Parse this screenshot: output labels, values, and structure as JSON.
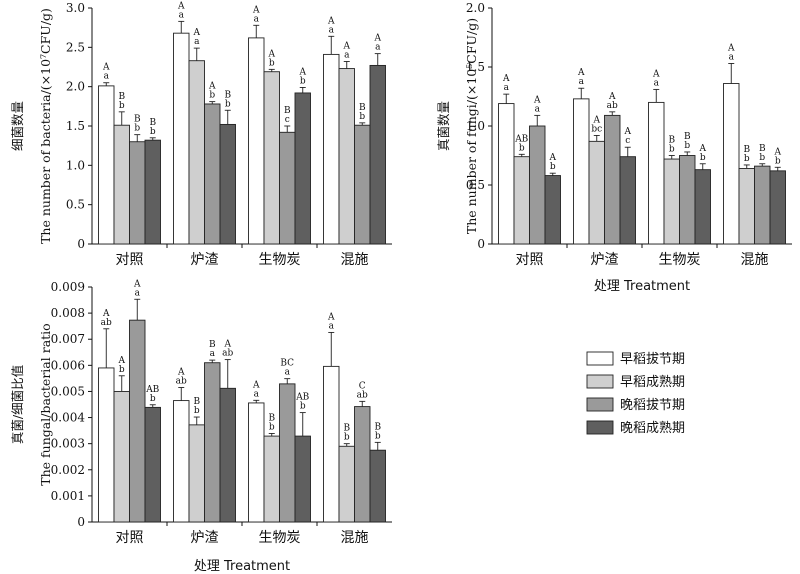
{
  "chart_data": [
    {
      "id": "bacteria",
      "type": "bar",
      "ylabel_cn": "细菌数量",
      "ylabel_en": "The number of bacteria/(×10⁷CFU/g)",
      "xlabel": "",
      "ylim": [
        0,
        3.0
      ],
      "yticks": [
        "0",
        "0.5",
        "1.0",
        "1.5",
        "2.0",
        "2.5",
        "3.0"
      ],
      "categories": [
        "对照",
        "炉渣",
        "生物炭",
        "混施"
      ],
      "series": [
        {
          "name": "早稻拔节期",
          "values": [
            2.01,
            2.68,
            2.62,
            2.41
          ],
          "errors": [
            0.04,
            0.15,
            0.16,
            0.23
          ]
        },
        {
          "name": "早稻成熟期",
          "values": [
            1.51,
            2.33,
            2.19,
            2.23
          ],
          "errors": [
            0.17,
            0.16,
            0.03,
            0.09
          ]
        },
        {
          "name": "晚稻拔节期",
          "values": [
            1.3,
            1.78,
            1.42,
            1.51
          ],
          "errors": [
            0.09,
            0.03,
            0.08,
            0.03
          ]
        },
        {
          "name": "晚稻成熟期",
          "values": [
            1.32,
            1.52,
            1.92,
            2.27
          ],
          "errors": [
            0.03,
            0.18,
            0.07,
            0.15
          ]
        }
      ],
      "labels": [
        [
          "A\na",
          "A\na",
          "A\na",
          "A\na"
        ],
        [
          "B\nb",
          "A\na",
          "A\nb",
          "A\na"
        ],
        [
          "B\nb",
          "A\nb",
          "B\nc",
          "B\nb"
        ],
        [
          "B\nb",
          "B\nb",
          "A\nb",
          "A\na"
        ]
      ]
    },
    {
      "id": "fungi",
      "type": "bar",
      "ylabel_cn": "真菌数量",
      "ylabel_en": "The number of fungi/(×10⁵CFU/g)",
      "xlabel": "处理 Treatment",
      "ylim": [
        0,
        2.0
      ],
      "yticks": [
        "0",
        "0.5",
        "1.0",
        "1.5",
        "2.0"
      ],
      "categories": [
        "对照",
        "炉渣",
        "生物炭",
        "混施"
      ],
      "series": [
        {
          "name": "早稻拔节期",
          "values": [
            1.19,
            1.23,
            1.2,
            1.36
          ],
          "errors": [
            0.08,
            0.09,
            0.11,
            0.17
          ]
        },
        {
          "name": "早稻成熟期",
          "values": [
            0.74,
            0.87,
            0.72,
            0.64
          ],
          "errors": [
            0.02,
            0.05,
            0.03,
            0.03
          ]
        },
        {
          "name": "晚稻拔节期",
          "values": [
            1.0,
            1.09,
            0.75,
            0.66
          ],
          "errors": [
            0.09,
            0.03,
            0.03,
            0.02
          ]
        },
        {
          "name": "晚稻成熟期",
          "values": [
            0.58,
            0.74,
            0.63,
            0.62
          ],
          "errors": [
            0.02,
            0.08,
            0.05,
            0.03
          ]
        }
      ],
      "labels": [
        [
          "A\na",
          "A\na",
          "A\na",
          "A\na"
        ],
        [
          "AB\nb",
          "A\nbc",
          "B\nb",
          "B\nb"
        ],
        [
          "A\na",
          "A\nab",
          "B\nb",
          "B\nb"
        ],
        [
          "A\nb",
          "A\nc",
          "A\nb",
          "A\nb"
        ]
      ]
    },
    {
      "id": "ratio",
      "type": "bar",
      "ylabel_cn": "真菌/细菌比值",
      "ylabel_en": "The fungal/bacterial ratio",
      "xlabel": "处理 Treatment",
      "ylim": [
        0,
        0.009
      ],
      "yticks": [
        "0",
        "0.001",
        "0.002",
        "0.003",
        "0.004",
        "0.005",
        "0.006",
        "0.007",
        "0.008",
        "0.009"
      ],
      "categories": [
        "对照",
        "炉渣",
        "生物炭",
        "混施"
      ],
      "series": [
        {
          "name": "早稻拔节期",
          "values": [
            0.0059,
            0.00465,
            0.00456,
            0.00596
          ],
          "errors": [
            0.0015,
            0.0005,
            0.0001,
            0.0013
          ]
        },
        {
          "name": "早稻成熟期",
          "values": [
            0.005,
            0.00372,
            0.00329,
            0.0029
          ],
          "errors": [
            0.0006,
            0.0003,
            0.0001,
            0.0001
          ]
        },
        {
          "name": "晚稻拔节期",
          "values": [
            0.00773,
            0.0061,
            0.00529,
            0.00442
          ],
          "errors": [
            0.0008,
            0.0001,
            0.0002,
            0.0002
          ]
        },
        {
          "name": "晚稻成熟期",
          "values": [
            0.00439,
            0.00512,
            0.00329,
            0.00275
          ],
          "errors": [
            0.0001,
            0.0011,
            0.0009,
            0.0003
          ]
        }
      ],
      "labels": [
        [
          "A\nab",
          "A\nab",
          "A\na",
          "A\na"
        ],
        [
          "A\nb",
          "B\nb",
          "B\nb",
          "B\nb"
        ],
        [
          "A\na",
          "B\na",
          "BC\na",
          "C\nab"
        ],
        [
          "AB\nb",
          "A\nab",
          "AB\nb",
          "B\nb"
        ]
      ]
    }
  ],
  "legend": {
    "items": [
      {
        "label": "早稻拔节期",
        "color": "#ffffff"
      },
      {
        "label": "早稻成熟期",
        "color": "#cfcfcf"
      },
      {
        "label": "晚稻拔节期",
        "color": "#9a9a9a"
      },
      {
        "label": "晚稻成熟期",
        "color": "#5f5f5f"
      }
    ]
  }
}
